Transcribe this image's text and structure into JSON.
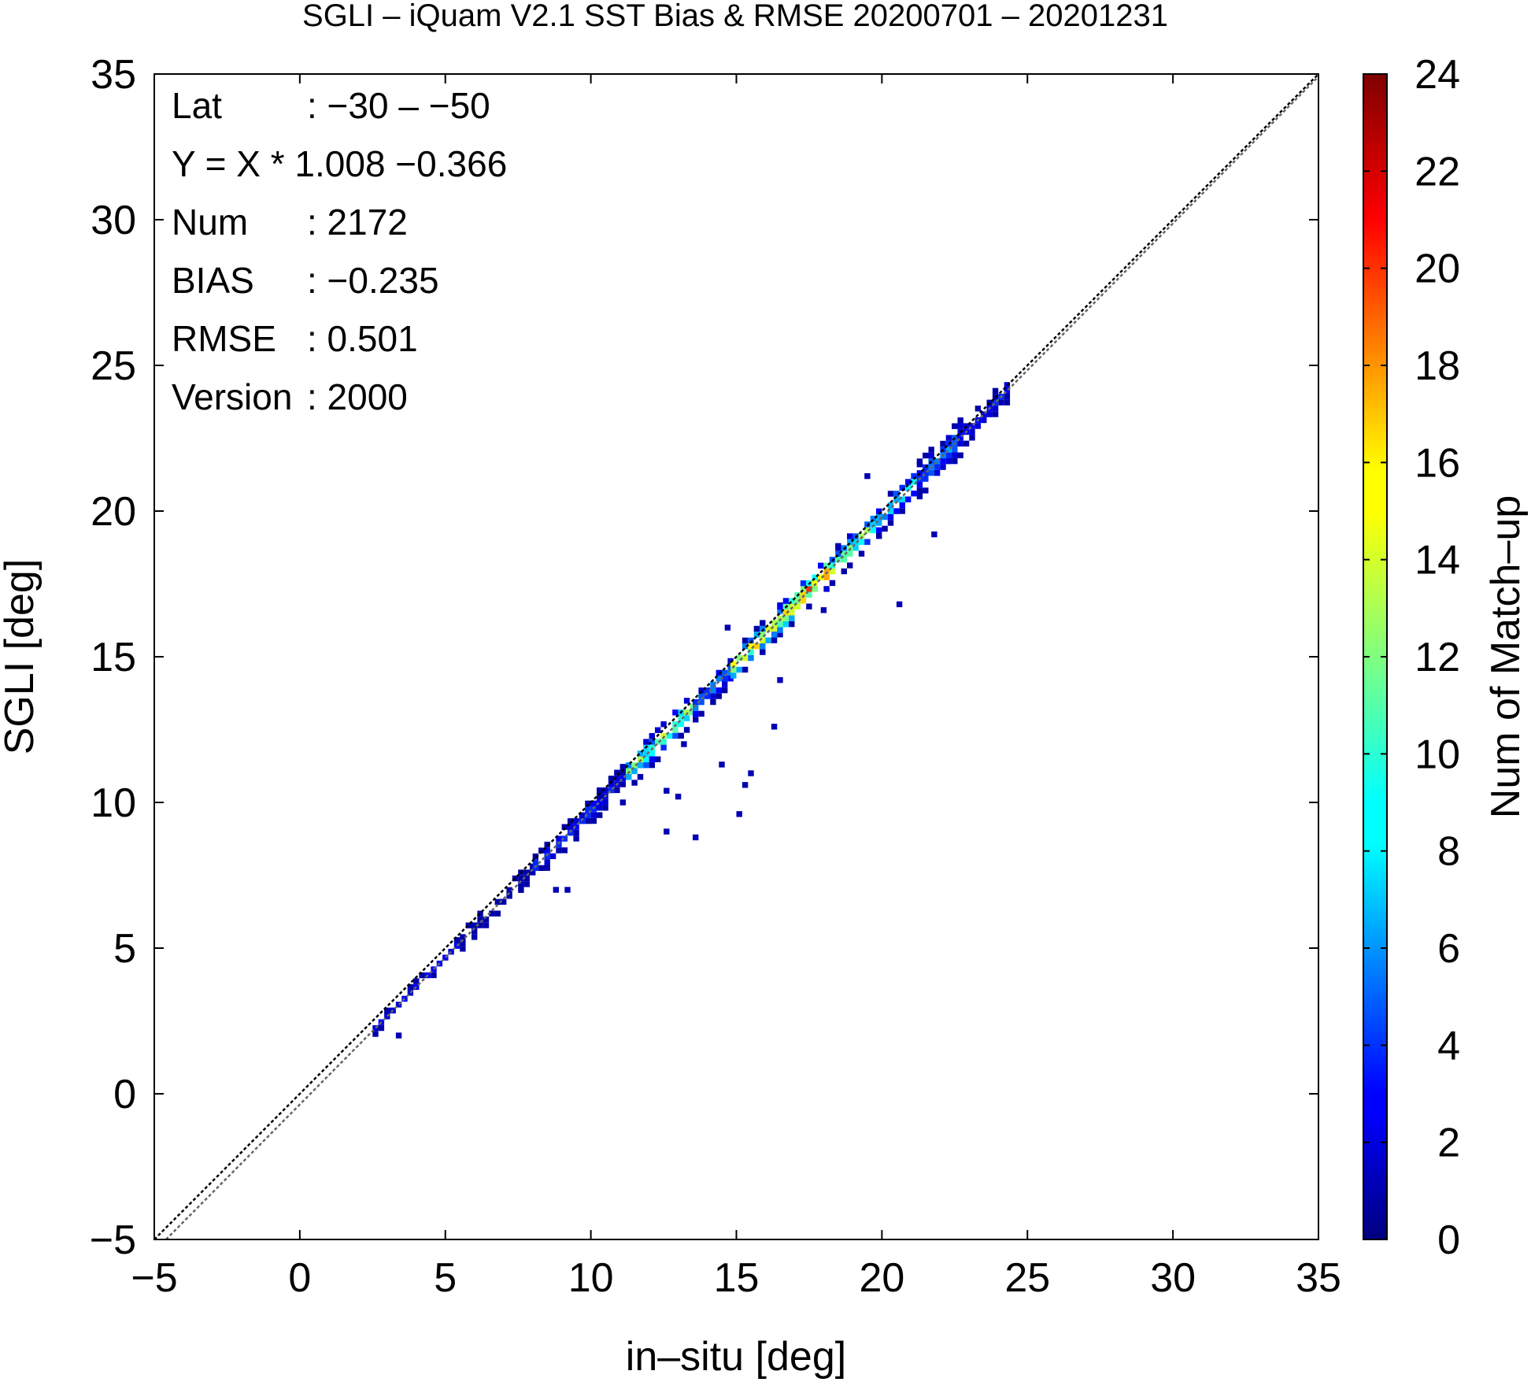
{
  "chart_data": {
    "type": "heatmap",
    "title": "SGLI – iQuam V2.1 SST Bias & RMSE 20200701 – 20201231",
    "xlabel": "in–situ [deg]",
    "ylabel": "SGLI [deg]",
    "xlim": [
      -5,
      35
    ],
    "ylim": [
      -5,
      35
    ],
    "x_ticks": [
      -5,
      0,
      5,
      10,
      15,
      20,
      25,
      30,
      35
    ],
    "y_ticks": [
      -5,
      0,
      5,
      10,
      15,
      20,
      25,
      30,
      35
    ],
    "x_tick_labels": [
      "−5",
      "0",
      "5",
      "10",
      "15",
      "20",
      "25",
      "30",
      "35"
    ],
    "y_tick_labels": [
      "−5",
      "0",
      "5",
      "10",
      "15",
      "20",
      "25",
      "30",
      "35"
    ],
    "colorbar": {
      "label": "Num of Match–up",
      "range": [
        0,
        24
      ],
      "ticks": [
        0,
        2,
        4,
        6,
        8,
        10,
        12,
        14,
        16,
        18,
        20,
        22,
        24
      ],
      "colormap": "jet"
    },
    "reference_lines": [
      {
        "kind": "one-to-one",
        "slope": 1.0,
        "intercept": 0.0,
        "color": "#000000",
        "style": "dotted"
      },
      {
        "kind": "regression",
        "slope": 1.008,
        "intercept": -0.366,
        "color": "#666666",
        "style": "dotted"
      }
    ],
    "bin_width": 0.2,
    "density_segments": [
      {
        "x0": 2.5,
        "x1": 5.5,
        "peak_count": 3,
        "band": 0.2
      },
      {
        "x0": 5.5,
        "x1": 8,
        "peak_count": 2,
        "band": 0.3
      },
      {
        "x0": 8,
        "x1": 10.2,
        "peak_count": 5,
        "band": 0.45
      },
      {
        "x0": 10.2,
        "x1": 11.2,
        "peak_count": 4,
        "band": 0.4
      },
      {
        "x0": 11.2,
        "x1": 13.5,
        "peak_count": 14,
        "band": 0.55
      },
      {
        "x0": 13.5,
        "x1": 14.8,
        "peak_count": 8,
        "band": 0.5
      },
      {
        "x0": 14.8,
        "x1": 16.4,
        "peak_count": 18,
        "band": 0.5
      },
      {
        "x0": 16.4,
        "x1": 18.2,
        "peak_count": 21,
        "band": 0.55
      },
      {
        "x0": 18.2,
        "x1": 19.8,
        "peak_count": 14,
        "band": 0.55
      },
      {
        "x0": 19.8,
        "x1": 21.2,
        "peak_count": 11,
        "band": 0.5
      },
      {
        "x0": 21.2,
        "x1": 22.6,
        "peak_count": 7,
        "band": 0.6
      },
      {
        "x0": 22.6,
        "x1": 24.3,
        "peak_count": 4,
        "band": 0.4
      }
    ],
    "outlier_bins": [
      [
        3.3,
        1.9
      ],
      [
        8.7,
        6.9
      ],
      [
        9.1,
        6.9
      ],
      [
        12.5,
        8.9
      ],
      [
        13.5,
        8.7
      ],
      [
        12.5,
        10.3
      ],
      [
        12.9,
        10.1
      ],
      [
        14.4,
        11.2
      ],
      [
        15.2,
        10.5
      ],
      [
        15.4,
        10.9
      ],
      [
        15.0,
        9.5
      ],
      [
        16.2,
        12.5
      ],
      [
        16.4,
        14.1
      ],
      [
        17.9,
        16.5
      ],
      [
        20.5,
        16.7
      ],
      [
        21.7,
        19.1
      ],
      [
        19.4,
        21.1
      ],
      [
        11.0,
        9.9
      ],
      [
        13.1,
        11.9
      ],
      [
        14.6,
        15.9
      ],
      [
        18.4,
        18.7
      ]
    ],
    "stats_box": [
      {
        "label": "Lat",
        "value": ": −30 – −50"
      },
      {
        "label": "Y = X * 1.008 −0.366",
        "value": ""
      },
      {
        "label": "Num",
        "value": ": 2172"
      },
      {
        "label": "BIAS",
        "value": ": −0.235"
      },
      {
        "label": "RMSE",
        "value": ": 0.501"
      },
      {
        "label": "Version",
        "value": ": 2000"
      }
    ],
    "grid": false,
    "legend": "none"
  }
}
